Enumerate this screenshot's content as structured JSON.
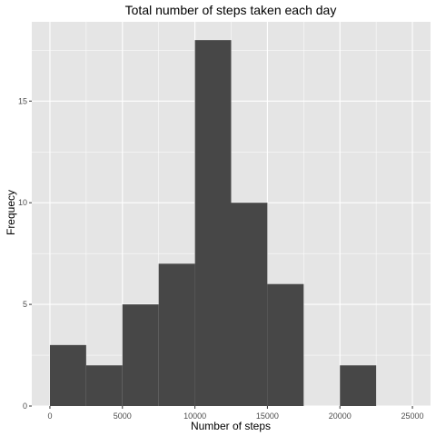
{
  "chart_data": {
    "type": "bar",
    "title": "Total number of steps taken each day",
    "xlabel": "Number of steps",
    "ylabel": "Frequecy",
    "xlim": [
      -1250,
      26250
    ],
    "ylim": [
      0,
      18.9
    ],
    "x_ticks": [
      0,
      5000,
      10000,
      15000,
      20000,
      25000
    ],
    "x_tick_labels": [
      "0",
      "5000",
      "10000",
      "15000",
      "20000",
      "25000"
    ],
    "y_ticks": [
      0,
      5,
      10,
      15
    ],
    "y_tick_labels": [
      "0",
      "5",
      "10",
      "15"
    ],
    "bin_width": 2500,
    "bins": [
      {
        "start": 0,
        "end": 2500,
        "count": 3
      },
      {
        "start": 2500,
        "end": 5000,
        "count": 2
      },
      {
        "start": 5000,
        "end": 7500,
        "count": 5
      },
      {
        "start": 7500,
        "end": 10000,
        "count": 7
      },
      {
        "start": 10000,
        "end": 12500,
        "count": 18
      },
      {
        "start": 12500,
        "end": 15000,
        "count": 10
      },
      {
        "start": 15000,
        "end": 17500,
        "count": 6
      },
      {
        "start": 17500,
        "end": 20000,
        "count": 0
      },
      {
        "start": 20000,
        "end": 22500,
        "count": 2
      },
      {
        "start": 22500,
        "end": 25000,
        "count": 0
      }
    ],
    "grid": true,
    "colors": {
      "panel": "#e5e5e5",
      "grid_major": "#ffffff",
      "bar": "#474747",
      "tick": "#333333"
    }
  }
}
